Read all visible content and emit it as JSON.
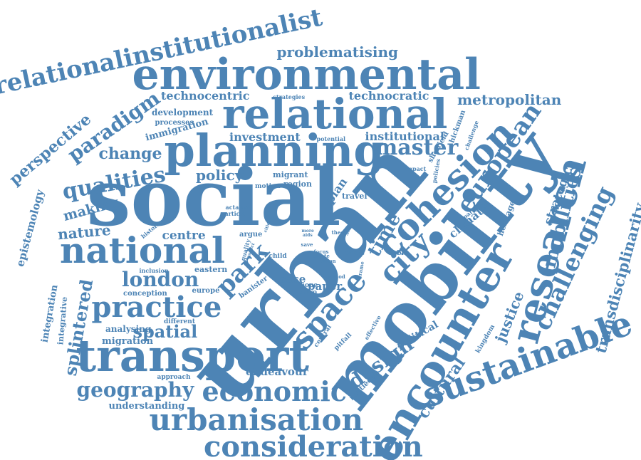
{
  "word_color": "#4d84b5",
  "background_color": "#ffffff",
  "words": [
    {
      "text": "urban"
    },
    {
      "text": "social"
    },
    {
      "text": "mobility"
    },
    {
      "text": "environmental"
    },
    {
      "text": "relational"
    },
    {
      "text": "planning"
    },
    {
      "text": "transport"
    },
    {
      "text": "national"
    },
    {
      "text": "encounter"
    },
    {
      "text": "research"
    },
    {
      "text": "cohesion"
    },
    {
      "text": "sustainable"
    },
    {
      "text": "economic"
    },
    {
      "text": "urbanisation"
    },
    {
      "text": "consideration"
    },
    {
      "text": "practice"
    },
    {
      "text": "space"
    },
    {
      "text": "city"
    },
    {
      "text": "challenging"
    },
    {
      "text": "relationalinstitutionalist"
    },
    {
      "text": "european"
    },
    {
      "text": "master"
    },
    {
      "text": "qualities"
    },
    {
      "text": "paradigm"
    },
    {
      "text": "london"
    },
    {
      "text": "geography"
    },
    {
      "text": "park"
    },
    {
      "text": "design"
    },
    {
      "text": "time"
    },
    {
      "text": "mobilities"
    },
    {
      "text": "transdisciplinarity"
    },
    {
      "text": "spatial"
    },
    {
      "text": "perspective"
    },
    {
      "text": "splintered"
    },
    {
      "text": "cultural"
    },
    {
      "text": "justice"
    },
    {
      "text": "problematising"
    },
    {
      "text": "metropolitan"
    },
    {
      "text": "technocentric"
    },
    {
      "text": "technocratic"
    },
    {
      "text": "policy"
    },
    {
      "text": "change"
    },
    {
      "text": "nature"
    },
    {
      "text": "making"
    },
    {
      "text": "centre"
    },
    {
      "text": "epistemology"
    },
    {
      "text": "strategic"
    },
    {
      "text": "institutional"
    },
    {
      "text": "investment"
    },
    {
      "text": "climate"
    },
    {
      "text": "immigration"
    },
    {
      "text": "development"
    },
    {
      "text": "integration"
    },
    {
      "text": "plan"
    },
    {
      "text": "endeavour"
    },
    {
      "text": "case"
    },
    {
      "text": "paper"
    },
    {
      "text": "political"
    },
    {
      "text": "understanding"
    },
    {
      "text": "migration"
    },
    {
      "text": "analysing"
    },
    {
      "text": "processes"
    },
    {
      "text": "migrant"
    },
    {
      "text": "region"
    },
    {
      "text": "heritage"
    },
    {
      "text": "integrative"
    },
    {
      "text": "routledge"
    },
    {
      "text": "eastern"
    },
    {
      "text": "banister"
    },
    {
      "text": "europe"
    },
    {
      "text": "conception"
    },
    {
      "text": "hickman"
    },
    {
      "text": "sheffield"
    },
    {
      "text": "travel"
    },
    {
      "text": "inclusion"
    },
    {
      "text": "different"
    },
    {
      "text": "approach"
    },
    {
      "text": "kingdom"
    },
    {
      "text": "central"
    },
    {
      "text": "pitfall"
    },
    {
      "text": "argue"
    },
    {
      "text": "motion"
    },
    {
      "text": "article"
    },
    {
      "text": "historic"
    },
    {
      "text": "child"
    },
    {
      "text": "robin"
    },
    {
      "text": "hope"
    },
    {
      "text": "cairo"
    },
    {
      "text": "crisis"
    },
    {
      "text": "challenge"
    },
    {
      "text": "strategies"
    },
    {
      "text": "potential"
    },
    {
      "text": "impact"
    },
    {
      "text": "policies"
    },
    {
      "text": "parkfor"
    },
    {
      "text": "actants"
    },
    {
      "text": "quality"
    },
    {
      "text": "effective"
    },
    {
      "text": "period"
    },
    {
      "text": "theory"
    },
    {
      "text": "vision"
    },
    {
      "text": "focus"
    },
    {
      "text": "estate"
    },
    {
      "text": "save"
    },
    {
      "text": "frame"
    },
    {
      "text": "cities"
    },
    {
      "text": "aspect"
    },
    {
      "text": "more"
    },
    {
      "text": "aids"
    },
    {
      "text": "our"
    }
  ]
}
